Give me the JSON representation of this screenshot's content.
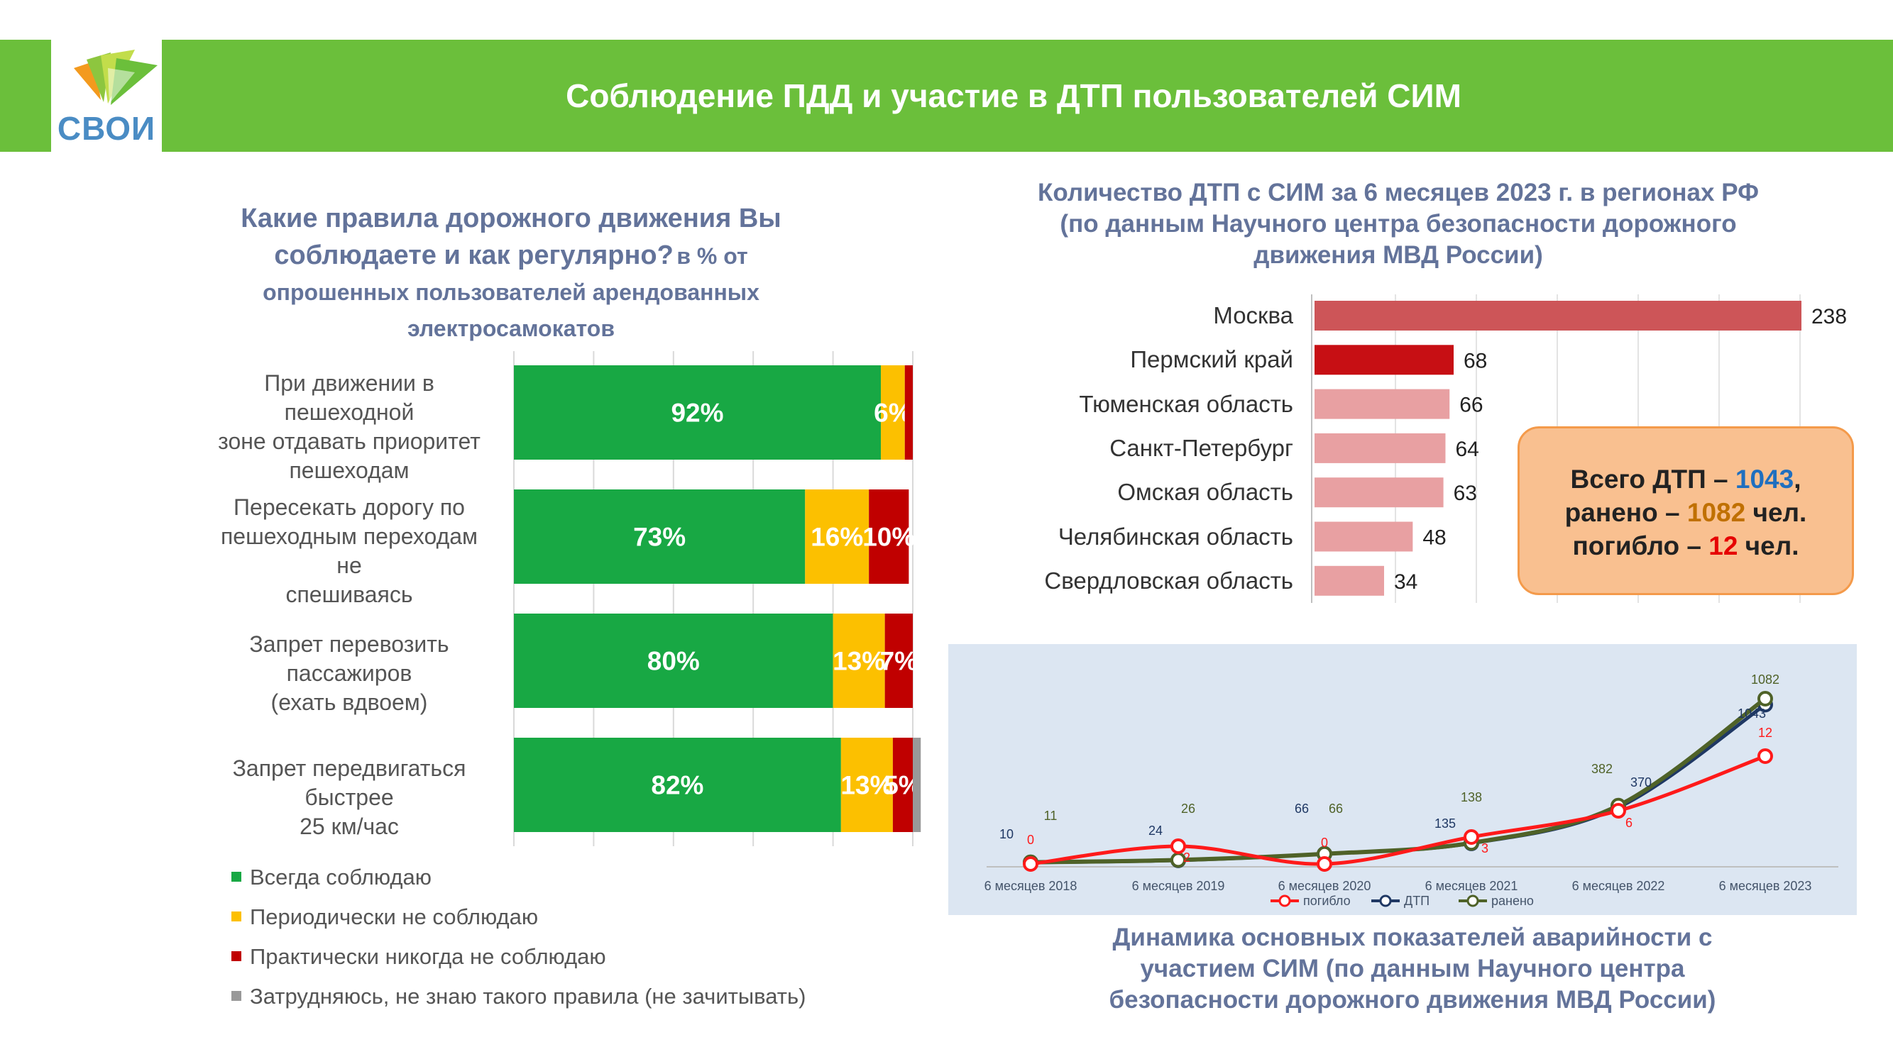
{
  "header": {
    "title": "Соблюдение ПДД и участие в ДТП пользователей СИМ",
    "logo_text": "СВОИ"
  },
  "survey": {
    "title_big": "Какие правила дорожного движения Вы соблюдаете и как регулярно?",
    "title_small": "в % от опрошенных пользователей арендованных электросамокатов"
  },
  "summary": {
    "line1_label": "Всего ДТП – ",
    "line1_value": "1043",
    "line1_tail": ",",
    "line2_label": "ранено – ",
    "line2_value": "1082",
    "line2_tail": " чел.",
    "line3_label": "погибло – ",
    "line3_value": "12",
    "line3_tail": " чел.",
    "colors": {
      "dtp": "#1f6fbf",
      "injured": "#c07000",
      "killed": "#e60000"
    }
  },
  "chart_data": [
    {
      "type": "bar",
      "orientation": "horizontal",
      "stacked": true,
      "categories": [
        "При движении в пешеходной зоне отдавать приоритет пешеходам",
        "Пересекать дорогу по пешеходным переходам не спешиваясь",
        "Запрет перевозить пассажиров (ехать вдвоем)",
        "Запрет передвигаться быстрее 25 км/час"
      ],
      "category_lines": [
        [
          "При движении в пешеходной",
          "зоне отдавать приоритет",
          "пешеходам"
        ],
        [
          "Пересекать дорогу по",
          "пешеходным переходам не",
          "спешиваясь"
        ],
        [
          "Запрет перевозить пассажиров",
          "(ехать вдвоем)"
        ],
        [
          "Запрет передвигаться быстрее",
          "25 км/час"
        ]
      ],
      "xlim": [
        0,
        100
      ],
      "grid": true,
      "legend": "bottom",
      "series": [
        {
          "name": "Всегда соблюдаю",
          "color": "#18a844",
          "values": [
            92,
            73,
            80,
            82
          ],
          "labels": [
            "92%",
            "73%",
            "80%",
            "82%"
          ]
        },
        {
          "name": "Периодически не соблюдаю",
          "color": "#fcc000",
          "values": [
            6,
            16,
            13,
            13
          ],
          "labels": [
            "6%",
            "16%",
            "13%",
            "13%"
          ]
        },
        {
          "name": "Практически никогда не соблюдаю",
          "color": "#c00000",
          "values": [
            2,
            10,
            7,
            5
          ],
          "labels": [
            "",
            "10%",
            "7%",
            "5%"
          ]
        },
        {
          "name": "Затрудняюсь, не знаю такого правила (не зачитывать)",
          "color": "#999999",
          "values": [
            0,
            0,
            0,
            2
          ],
          "labels": [
            "",
            "",
            "",
            ""
          ]
        }
      ]
    },
    {
      "type": "bar",
      "orientation": "horizontal",
      "title": "Количество ДТП с СИМ за 6 месяцев 2023 г. в регионах РФ (по данным Научного центра безопасности дорожного движения МВД России)",
      "title_lines": [
        "Количество ДТП с СИМ за 6 месяцев 2023 г. в регионах РФ",
        "(по данным Научного центра безопасности дорожного",
        "движения МВД России)"
      ],
      "categories": [
        "Москва",
        "Пермский край",
        "Тюменская область",
        "Санкт-Петербург",
        "Омская область",
        "Челябинская область",
        "Свердловская область"
      ],
      "values": [
        238,
        68,
        66,
        64,
        63,
        48,
        34
      ],
      "colors": [
        "#cd5558",
        "#c70f14",
        "#e8a0a2",
        "#e8a0a2",
        "#e8a0a2",
        "#e8a0a2",
        "#e8a0a2"
      ],
      "xlim": [
        0,
        240
      ],
      "grid": true
    },
    {
      "type": "line",
      "title": "Динамика основных показателей аварийности с участием СИМ (по данным Научного центра безопасности дорожного движения МВД России)",
      "title_lines": [
        "Динамика основных показателей аварийности с",
        "участием СИМ (по данным Научного центра",
        "безопасности дорожного движения МВД России)"
      ],
      "categories": [
        "6 месяцев 2018",
        "6 месяцев 2019",
        "6 месяцев 2020",
        "6 месяцев 2021",
        "6 месяцев 2022",
        "6 месяцев 2023"
      ],
      "ylim": [
        0,
        1150
      ],
      "legend": "bottom",
      "series": [
        {
          "name": "погибло",
          "color": "#ff1a1a",
          "label_color": "#ff1a1a",
          "values": [
            0,
            2,
            0,
            3,
            6,
            12
          ]
        },
        {
          "name": "ДТП",
          "color": "#1f3864",
          "label_color": "#1f3864",
          "values": [
            10,
            24,
            66,
            135,
            370,
            1043
          ]
        },
        {
          "name": "ранено",
          "color": "#4f6228",
          "label_color": "#4f6228",
          "values": [
            11,
            26,
            66,
            138,
            382,
            1082
          ]
        }
      ]
    }
  ]
}
